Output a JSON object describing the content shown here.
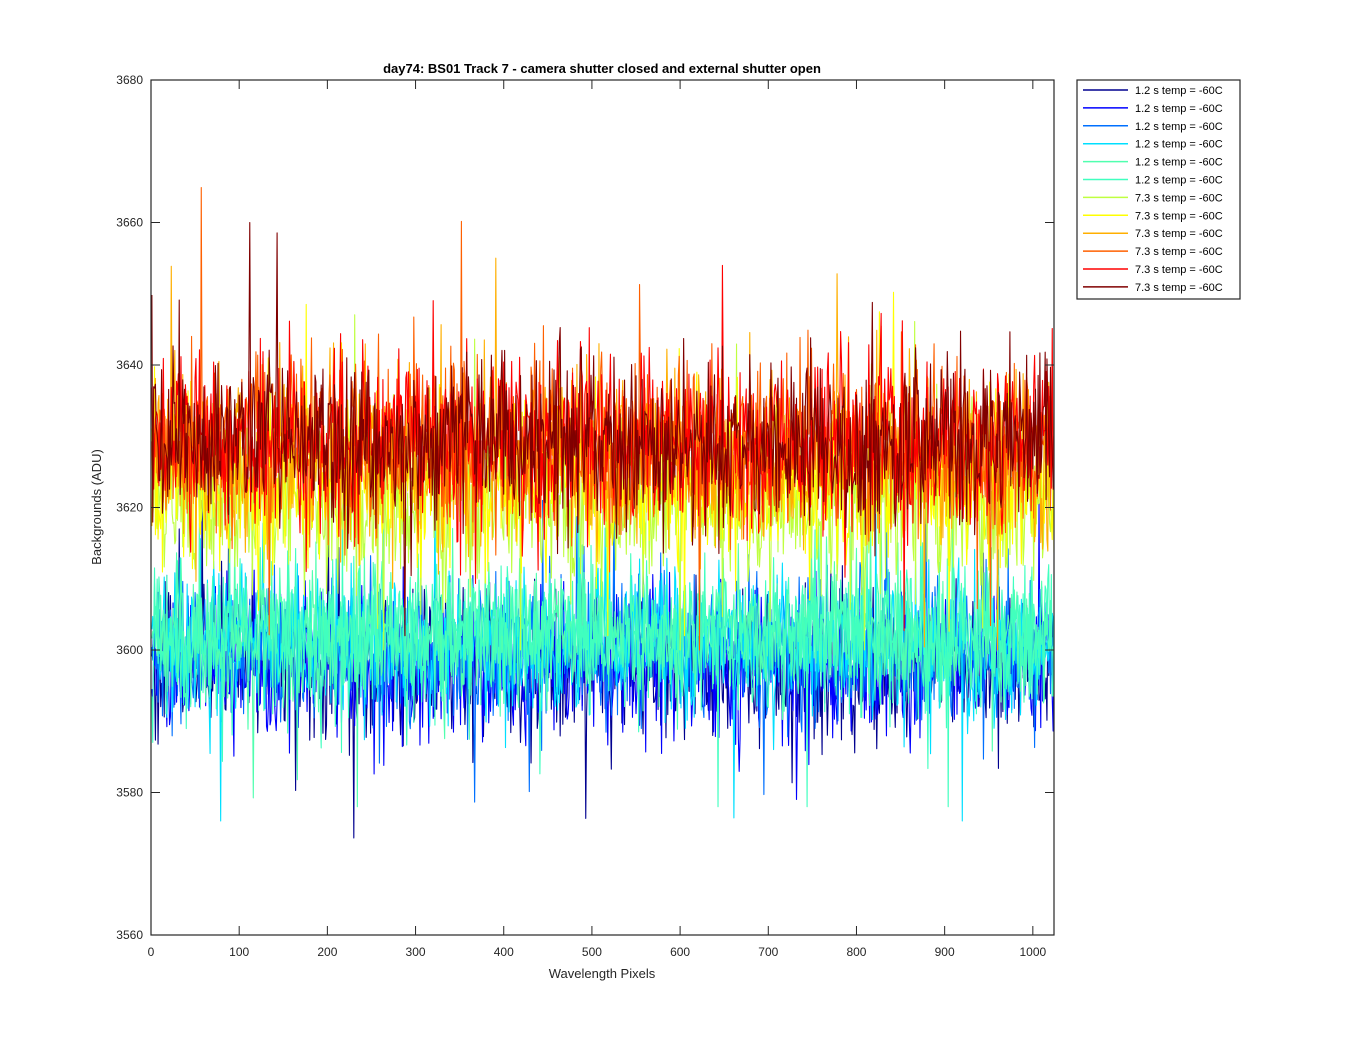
{
  "chart_data": {
    "type": "line",
    "title": "day74: BS01  Track 7 - camera shutter closed and external shutter open",
    "xlabel": "Wavelength Pixels",
    "ylabel": "Backgrounds (ADU)",
    "xlim": [
      0,
      1024
    ],
    "ylim": [
      3560,
      3680
    ],
    "x_ticks": [
      0,
      100,
      200,
      300,
      400,
      500,
      600,
      700,
      800,
      900,
      1000
    ],
    "y_ticks": [
      3560,
      3580,
      3600,
      3620,
      3640,
      3660,
      3680
    ],
    "grid": false,
    "legend_position": "outside-top-right",
    "x": {
      "start": 1,
      "end": 1024,
      "step": 1
    },
    "series": [
      {
        "name": "1.2 s temp = -60C",
        "color": "#00008f",
        "mean": 3598,
        "noise": 5,
        "min": 3568,
        "max": 3621
      },
      {
        "name": "1.2 s temp = -60C",
        "color": "#0000ff",
        "mean": 3598,
        "noise": 5,
        "min": 3568,
        "max": 3621
      },
      {
        "name": "1.2 s temp = -60C",
        "color": "#0070ff",
        "mean": 3600,
        "noise": 5,
        "min": 3574,
        "max": 3621
      },
      {
        "name": "1.2 s temp = -60C",
        "color": "#00dfff",
        "mean": 3601,
        "noise": 5,
        "min": 3576,
        "max": 3622
      },
      {
        "name": "1.2 s temp = -60C",
        "color": "#50ffaf",
        "mean": 3602,
        "noise": 5,
        "min": 3578,
        "max": 3622
      },
      {
        "name": "1.2 s temp = -60C",
        "color": "#40ffbf",
        "mean": 3602,
        "noise": 5,
        "min": 3578,
        "max": 3622
      },
      {
        "name": "7.3 s temp = -60C",
        "color": "#bfff40",
        "mean": 3621,
        "noise": 6,
        "min": 3600,
        "max": 3653
      },
      {
        "name": "7.3 s temp = -60C",
        "color": "#ffff00",
        "mean": 3624,
        "noise": 6,
        "min": 3602,
        "max": 3655
      },
      {
        "name": "7.3 s temp = -60C",
        "color": "#ffaf00",
        "mean": 3627,
        "noise": 6,
        "min": 3600,
        "max": 3655
      },
      {
        "name": "7.3 s temp = -60C",
        "color": "#ff6000",
        "mean": 3629,
        "noise": 6,
        "min": 3600,
        "max": 3668
      },
      {
        "name": "7.3 s temp = -60C",
        "color": "#ff0000",
        "mean": 3629,
        "noise": 6,
        "min": 3600,
        "max": 3660
      },
      {
        "name": "7.3 s temp = -60C",
        "color": "#800000",
        "mean": 3629,
        "noise": 6,
        "min": 3602,
        "max": 3660
      }
    ]
  }
}
